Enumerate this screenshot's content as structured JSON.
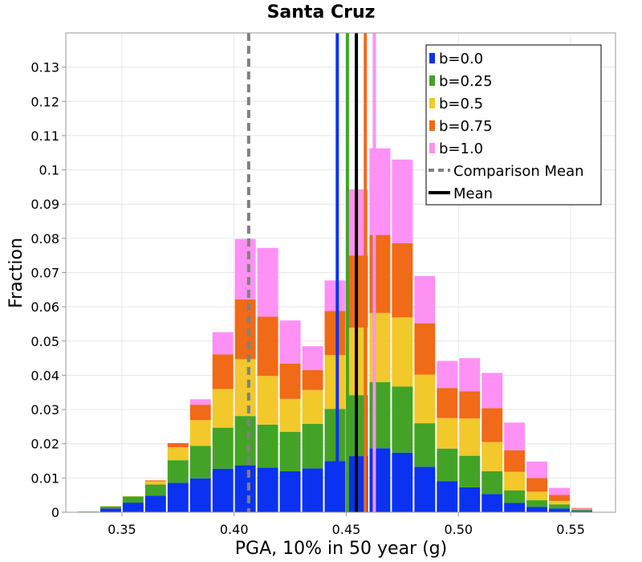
{
  "chart_data": {
    "type": "bar",
    "stacked": true,
    "title": "Santa Cruz",
    "xlabel": "PGA, 10% in 50 year (g)",
    "ylabel": "Fraction",
    "xlim": [
      0.325,
      0.57
    ],
    "ylim": [
      0,
      0.14
    ],
    "bin_width": 0.01,
    "x_ticks": [
      {
        "value": 0.35,
        "label": "0.35"
      },
      {
        "value": 0.4,
        "label": "0.40"
      },
      {
        "value": 0.45,
        "label": "0.45"
      },
      {
        "value": 0.5,
        "label": "0.50"
      },
      {
        "value": 0.55,
        "label": "0.55"
      }
    ],
    "y_ticks": [
      {
        "value": 0,
        "label": "0"
      },
      {
        "value": 0.01,
        "label": "0.01"
      },
      {
        "value": 0.02,
        "label": "0.02"
      },
      {
        "value": 0.03,
        "label": "0.03"
      },
      {
        "value": 0.04,
        "label": "0.04"
      },
      {
        "value": 0.05,
        "label": "0.05"
      },
      {
        "value": 0.06,
        "label": "0.06"
      },
      {
        "value": 0.07,
        "label": "0.07"
      },
      {
        "value": 0.08,
        "label": "0.08"
      },
      {
        "value": 0.09,
        "label": "0.09"
      },
      {
        "value": 0.1,
        "label": "0.1"
      },
      {
        "value": 0.11,
        "label": "0.11"
      },
      {
        "value": 0.12,
        "label": "0.12"
      },
      {
        "value": 0.13,
        "label": "0.13"
      }
    ],
    "bin_centers": [
      0.335,
      0.345,
      0.355,
      0.365,
      0.375,
      0.385,
      0.395,
      0.405,
      0.415,
      0.425,
      0.435,
      0.445,
      0.455,
      0.465,
      0.475,
      0.485,
      0.495,
      0.505,
      0.515,
      0.525,
      0.535,
      0.545,
      0.555
    ],
    "series": [
      {
        "name": "b=0.0",
        "color": "#0a32f0",
        "values": [
          0.0001,
          0.0011,
          0.0028,
          0.0048,
          0.0086,
          0.0099,
          0.0127,
          0.0137,
          0.013,
          0.012,
          0.0128,
          0.0149,
          0.0164,
          0.0187,
          0.0174,
          0.0133,
          0.0091,
          0.0073,
          0.0053,
          0.0027,
          0.0016,
          0.0011,
          0.0004
        ]
      },
      {
        "name": "b=0.25",
        "color": "#43a327",
        "values": [
          0.0001,
          0.0006,
          0.0018,
          0.0033,
          0.0066,
          0.0095,
          0.012,
          0.0144,
          0.0126,
          0.0115,
          0.013,
          0.0153,
          0.0178,
          0.0193,
          0.0193,
          0.0127,
          0.0095,
          0.0092,
          0.0067,
          0.0037,
          0.0019,
          0.0012,
          0.0003
        ]
      },
      {
        "name": "b=0.5",
        "color": "#f2c82a",
        "values": [
          0.0,
          0.0001,
          0.0001,
          0.0009,
          0.0038,
          0.0075,
          0.0113,
          0.0166,
          0.0142,
          0.0096,
          0.0099,
          0.0157,
          0.0197,
          0.0202,
          0.0202,
          0.0142,
          0.0089,
          0.0109,
          0.0085,
          0.0054,
          0.0025,
          0.001,
          0.0002
        ]
      },
      {
        "name": "b=0.75",
        "color": "#f06a18",
        "values": [
          0.0,
          0.0,
          0.0,
          0.0003,
          0.0012,
          0.0045,
          0.0101,
          0.0175,
          0.0173,
          0.0103,
          0.0058,
          0.0129,
          0.0211,
          0.0228,
          0.0217,
          0.015,
          0.0088,
          0.0079,
          0.0099,
          0.0063,
          0.004,
          0.0018,
          0.0002
        ]
      },
      {
        "name": "b=1.0",
        "color": "#ff91f5",
        "values": [
          0.0,
          0.0,
          0.0,
          0.0,
          0.0,
          0.0016,
          0.0065,
          0.0176,
          0.0201,
          0.0126,
          0.007,
          0.0089,
          0.0193,
          0.0253,
          0.0244,
          0.0138,
          0.0079,
          0.0097,
          0.0103,
          0.0081,
          0.0048,
          0.002,
          0.0002
        ]
      }
    ],
    "vlines": [
      {
        "name": "b=0.0",
        "x": 0.446,
        "color": "#0a32f0",
        "style": "solid"
      },
      {
        "name": "b=0.25",
        "x": 0.4505,
        "color": "#43a327",
        "style": "solid"
      },
      {
        "name": "b=0.5",
        "x": 0.4545,
        "color": "#f2c82a",
        "style": "solid"
      },
      {
        "name": "b=0.75",
        "x": 0.4585,
        "color": "#f06a18",
        "style": "solid"
      },
      {
        "name": "b=1.0",
        "x": 0.4625,
        "color": "#ff91f5",
        "style": "solid"
      },
      {
        "name": "Mean",
        "x": 0.4545,
        "color": "#000000",
        "style": "solid"
      },
      {
        "name": "Comparison Mean",
        "x": 0.4065,
        "color": "#808080",
        "style": "dashed"
      }
    ],
    "legend": {
      "position": "top-right",
      "entries": [
        {
          "label": "b=0.0",
          "color": "#0a32f0",
          "kind": "box"
        },
        {
          "label": "b=0.25",
          "color": "#43a327",
          "kind": "box"
        },
        {
          "label": "b=0.5",
          "color": "#f2c82a",
          "kind": "box"
        },
        {
          "label": "b=0.75",
          "color": "#f06a18",
          "kind": "box"
        },
        {
          "label": "b=1.0",
          "color": "#ff91f5",
          "kind": "box"
        },
        {
          "label": "Comparison Mean",
          "color": "#808080",
          "kind": "dashed-line"
        },
        {
          "label": "Mean",
          "color": "#000000",
          "kind": "line"
        }
      ]
    },
    "grid": true
  }
}
